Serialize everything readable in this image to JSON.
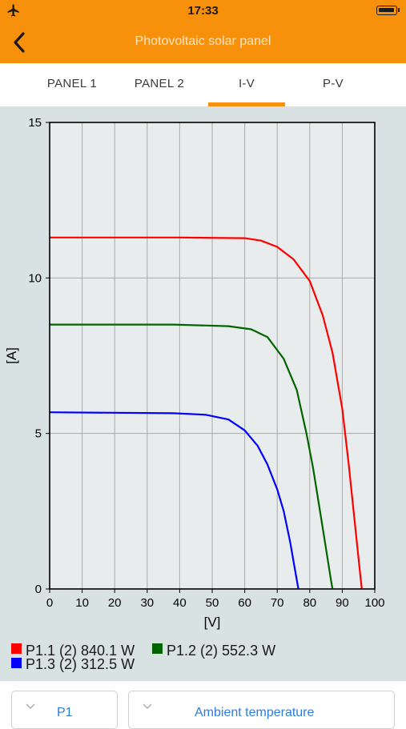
{
  "status": {
    "time": "17:33"
  },
  "nav": {
    "title": "Photovoltaic solar panel"
  },
  "tabs": [
    {
      "label": "PANEL 1",
      "active": false
    },
    {
      "label": "PANEL 2",
      "active": false
    },
    {
      "label": "I-V",
      "active": true
    },
    {
      "label": "P-V",
      "active": false
    }
  ],
  "chart_data": {
    "type": "line",
    "xlabel": "[V]",
    "ylabel": "[A]",
    "xlim": [
      0,
      100
    ],
    "ylim": [
      0,
      15
    ],
    "xticks": [
      0,
      10,
      20,
      30,
      40,
      50,
      60,
      70,
      80,
      90,
      100
    ],
    "yticks": [
      0,
      5,
      10,
      15
    ],
    "grid": true,
    "series": [
      {
        "name": "P1.1 (2) 840.1 W",
        "color": "#ff0000",
        "points": [
          [
            0,
            11.3
          ],
          [
            40,
            11.3
          ],
          [
            60,
            11.28
          ],
          [
            65,
            11.2
          ],
          [
            70,
            11.0
          ],
          [
            75,
            10.6
          ],
          [
            80,
            9.9
          ],
          [
            84,
            8.8
          ],
          [
            87,
            7.6
          ],
          [
            90,
            5.8
          ],
          [
            92,
            4.0
          ],
          [
            94,
            2.0
          ],
          [
            95.5,
            0.5
          ],
          [
            96,
            0
          ]
        ]
      },
      {
        "name": "P1.2 (2) 552.3 W",
        "color": "#006400",
        "points": [
          [
            0,
            8.5
          ],
          [
            38,
            8.5
          ],
          [
            55,
            8.45
          ],
          [
            62,
            8.35
          ],
          [
            67,
            8.1
          ],
          [
            72,
            7.4
          ],
          [
            76,
            6.4
          ],
          [
            79,
            5.0
          ],
          [
            81,
            3.9
          ],
          [
            83,
            2.6
          ],
          [
            85,
            1.3
          ],
          [
            86.5,
            0.3
          ],
          [
            87,
            0
          ]
        ]
      },
      {
        "name": "P1.3 (2) 312.5 W",
        "color": "#0000ff",
        "points": [
          [
            0,
            5.68
          ],
          [
            38,
            5.65
          ],
          [
            48,
            5.6
          ],
          [
            55,
            5.45
          ],
          [
            60,
            5.1
          ],
          [
            64,
            4.6
          ],
          [
            67,
            4.0
          ],
          [
            70,
            3.2
          ],
          [
            72,
            2.5
          ],
          [
            74,
            1.5
          ],
          [
            75.5,
            0.6
          ],
          [
            76.5,
            0
          ]
        ]
      }
    ],
    "legend": [
      {
        "label": "P1.1 (2) 840.1 W",
        "color": "#ff0000"
      },
      {
        "label": "P1.2 (2) 552.3 W",
        "color": "#006400"
      },
      {
        "label": "P1.3 (2) 312.5 W",
        "color": "#0000ff"
      }
    ],
    "legend_position": "bottom"
  },
  "selectors": {
    "left": {
      "label": "P1"
    },
    "right": {
      "label": "Ambient temperature"
    }
  },
  "colors": {
    "accent": "#f7900a",
    "link": "#2b7de0",
    "chart_bg": "#d8e2e2"
  }
}
